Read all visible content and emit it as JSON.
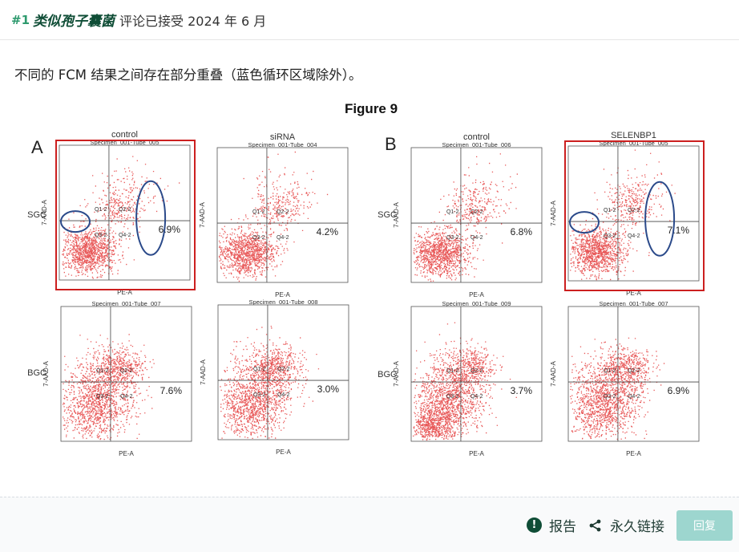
{
  "header": {
    "post_number": "#1",
    "species_name": "类似孢子囊菌",
    "status_text": "评论已接受 2024 年 6 月"
  },
  "post": {
    "body": "不同的 FCM 结果之间存在部分重叠（蓝色循环区域除外）。"
  },
  "figure": {
    "title": "Figure 9",
    "panel_labels": [
      "A",
      "B"
    ],
    "row_labels": [
      "SGC",
      "BGC"
    ],
    "column_titles": [
      "control",
      "siRNA",
      "control",
      "SELENBP1"
    ],
    "x_axis_label": "PE-A",
    "y_axis_label": "7-AAD-A",
    "quadrant_labels": [
      "Q1-2",
      "Q2-2",
      "Q3-2",
      "Q4-2"
    ],
    "highlight_color": "#cc1f1f",
    "circle_color": "#2b4a8a",
    "plots": [
      {
        "specimen": "Specimen_001-Tube_005",
        "percent": "6.9%",
        "highlighted": true
      },
      {
        "specimen": "Specimen_001-Tube_004",
        "percent": "4.2%",
        "highlighted": false
      },
      {
        "specimen": "Specimen_001-Tube_006",
        "percent": "6.8%",
        "highlighted": false
      },
      {
        "specimen": "Specimen_001-Tube_005",
        "percent": "7.1%",
        "highlighted": true
      },
      {
        "specimen": "Specimen_001-Tube_007",
        "percent": "7.6%",
        "highlighted": false
      },
      {
        "specimen": "Specimen_001-Tube_008",
        "percent": "3.0%",
        "highlighted": false
      },
      {
        "specimen": "Specimen_001-Tube_009",
        "percent": "3.7%",
        "highlighted": false
      },
      {
        "specimen": "Specimen_001-Tube_007",
        "percent": "6.9%",
        "highlighted": false
      }
    ]
  },
  "footer": {
    "report_label": "报告",
    "permalink_label": "永久链接",
    "reply_label": "回复"
  },
  "icons": {
    "report": "exclamation-circle-icon",
    "share": "share-icon"
  }
}
